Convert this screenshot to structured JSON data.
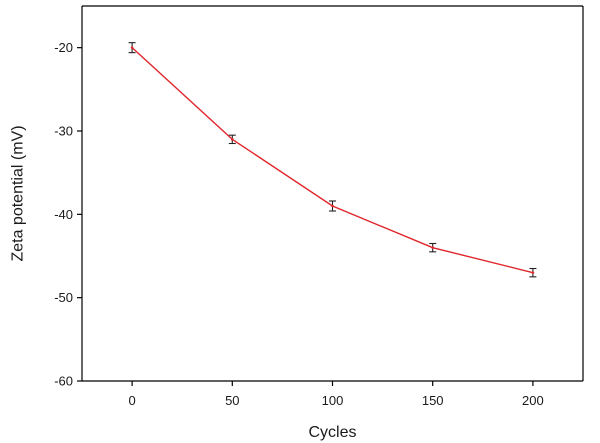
{
  "chart_data": {
    "type": "line",
    "title": "",
    "xlabel": "Cycles",
    "ylabel": "Zeta potential (mV)",
    "x": [
      0,
      50,
      100,
      150,
      200
    ],
    "series": [
      {
        "values": [
          -20,
          -31,
          -39,
          -44,
          -47
        ],
        "errors": [
          0.6,
          0.5,
          0.6,
          0.5,
          0.5
        ]
      }
    ],
    "xlim": [
      -25,
      225
    ],
    "ylim": [
      -60,
      -15
    ],
    "xticks": [
      0,
      50,
      100,
      150,
      200
    ],
    "yticks": [
      -20,
      -30,
      -40,
      -50,
      -60
    ],
    "grid": false,
    "legend": "none",
    "colors": {
      "line": "#e0262b",
      "error_bar": "#222222",
      "axis": "#000000"
    }
  }
}
